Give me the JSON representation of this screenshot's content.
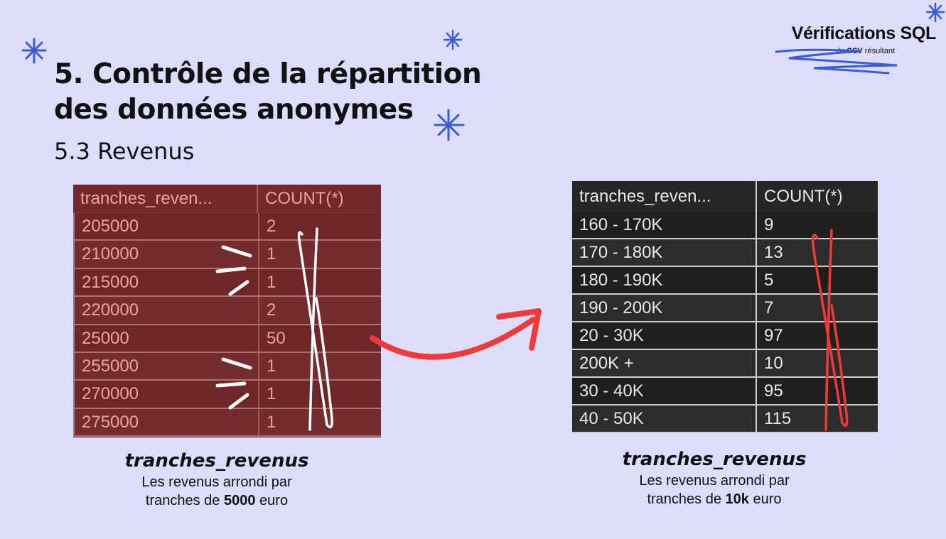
{
  "header": {
    "title_line1": "5. Contrôle de la répartition",
    "title_line2": "des données anonymes",
    "subtitle": "5.3 Revenus"
  },
  "brand": {
    "title": "Vérifications SQL",
    "sub_prefix": "du ",
    "sub_bold": "CSV",
    "sub_suffix": " résultant"
  },
  "left_table": {
    "columns": [
      "tranches_reven...",
      "COUNT(*)"
    ],
    "rows": [
      [
        "205000",
        "2"
      ],
      [
        "210000",
        "1"
      ],
      [
        "215000",
        "1"
      ],
      [
        "220000",
        "2"
      ],
      [
        "25000",
        "50"
      ],
      [
        "255000",
        "1"
      ],
      [
        "270000",
        "1"
      ],
      [
        "275000",
        "1"
      ]
    ]
  },
  "right_table": {
    "columns": [
      "tranches_reven...",
      "COUNT(*)"
    ],
    "rows": [
      [
        "160 - 170K",
        "9"
      ],
      [
        "170 - 180K",
        "13"
      ],
      [
        "180 - 190K",
        "5"
      ],
      [
        "190 - 200K",
        "7"
      ],
      [
        "20 - 30K",
        "97"
      ],
      [
        "200K +",
        "10"
      ],
      [
        "30 - 40K",
        "95"
      ],
      [
        "40 - 50K",
        "115"
      ]
    ]
  },
  "left_caption": {
    "heading": "tranches_revenus",
    "line1": "Les revenus arrondi par",
    "line2_prefix": "tranches de ",
    "line2_bold": "5000",
    "line2_suffix": " euro"
  },
  "right_caption": {
    "heading": "tranches_revenus",
    "line1": "Les revenus arrondi par",
    "line2_prefix": "tranches de ",
    "line2_bold": "10k",
    "line2_suffix": " euro"
  },
  "colors": {
    "background": "#dcdcfb",
    "accent_blue": "#3b5bdb",
    "arrow_red": "#f03a3a",
    "left_table_bg": "#6e2629",
    "right_table_bg": "#1f1f1f"
  }
}
